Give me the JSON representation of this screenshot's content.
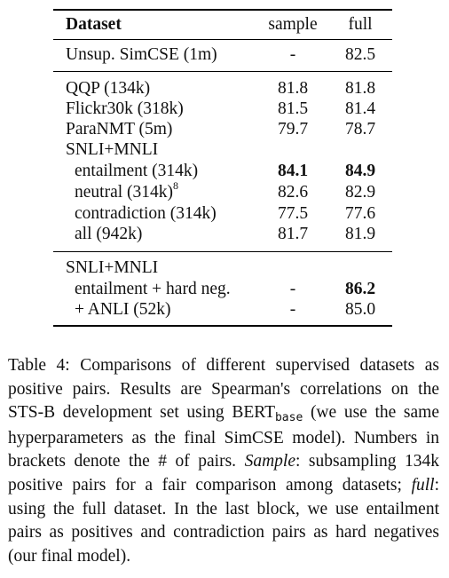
{
  "table": {
    "headers": {
      "dataset": "Dataset",
      "sample": "sample",
      "full": "full"
    },
    "rows": [
      {
        "label": "Unsup. SimCSE (1m)",
        "sample": "-",
        "full": "82.5"
      },
      {
        "label": "QQP (134k)",
        "sample": "81.8",
        "full": "81.8"
      },
      {
        "label": "Flickr30k (318k)",
        "sample": "81.5",
        "full": "81.4"
      },
      {
        "label": "ParaNMT (5m)",
        "sample": "79.7",
        "full": "78.7"
      },
      {
        "label": "SNLI+MNLI",
        "sample": "",
        "full": ""
      },
      {
        "label": "entailment (314k)",
        "sample": "84.1",
        "full": "84.9"
      },
      {
        "label": "neutral (314k)",
        "footnote": "8",
        "sample": "82.6",
        "full": "82.9"
      },
      {
        "label": "contradiction (314k)",
        "sample": "77.5",
        "full": "77.6"
      },
      {
        "label": "all (942k)",
        "sample": "81.7",
        "full": "81.9"
      },
      {
        "label": "SNLI+MNLI",
        "sample": "",
        "full": ""
      },
      {
        "label": "entailment + hard neg.",
        "sample": "-",
        "full": "86.2"
      },
      {
        "label": "+ ANLI (52k)",
        "sample": "-",
        "full": "85.0"
      }
    ]
  },
  "caption": {
    "p1": "Table 4: Comparisons of different supervised datasets as positive pairs. Results are Spearman's correlations on the STS-B development set using BERT",
    "subscript": "base",
    "p2": " (we use the same hyperparameters as the final SimCSE model). Numbers in brackets denote the # of pairs. ",
    "sample_word": "Sample",
    "p3": ": subsampling 134k positive pairs for a fair comparison among datasets; ",
    "full_word": "full",
    "p4": ": using the full dataset. In the last block, we use entailment pairs as positives and contradiction pairs as hard negatives (our final model)."
  }
}
